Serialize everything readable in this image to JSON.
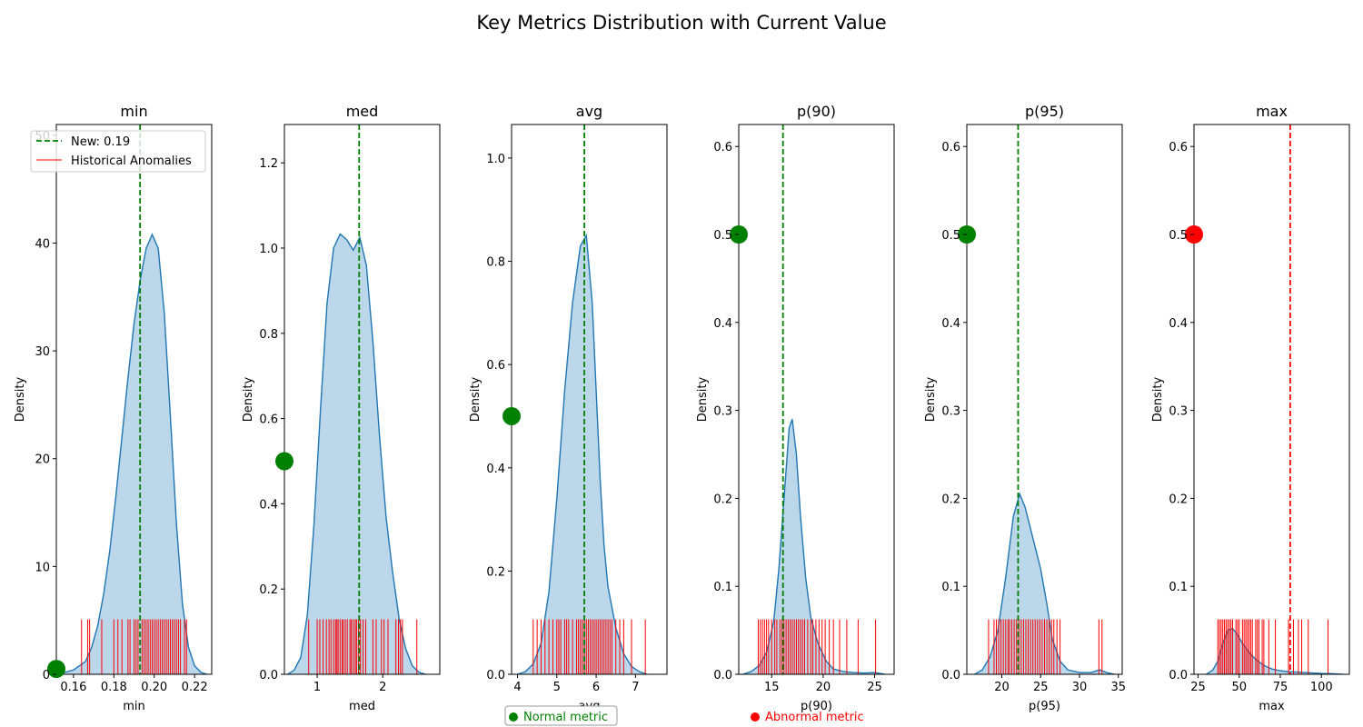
{
  "chart_data": {
    "type": "area",
    "title": "Key Metrics Distribution with Current Value",
    "legend": {
      "placement": "top-left",
      "new_label": "New: 0.19",
      "anomaly_label": "Historical Anomalies"
    },
    "status_legend": {
      "normal_label": "Normal metric",
      "abnormal_label": "Abnormal metric",
      "normal_color": "#008000",
      "abnormal_color": "#ff0000"
    },
    "colors": {
      "kde_line": "#1f77b4",
      "kde_fill": "#bcd6ea",
      "rug": "#ff0000",
      "normal": "#008000",
      "abnormal": "#ff0000"
    },
    "panels": [
      {
        "title": "min",
        "xlabel": "min",
        "ylabel": "Density",
        "xlim": [
          0.1515,
          0.2285
        ],
        "ylim": [
          0,
          51
        ],
        "xticks": [
          0.16,
          0.18,
          0.2,
          0.22
        ],
        "xtick_labels": [
          "0.16",
          "0.18",
          "0.20",
          "0.22"
        ],
        "yticks": [
          0,
          10,
          20,
          30,
          40,
          50
        ],
        "ytick_labels": [
          "0",
          "10",
          "20",
          "30",
          "40",
          "50"
        ],
        "new_value": 0.193,
        "status": "normal",
        "marker": [
          0.1515,
          0.5
        ],
        "kde": [
          [
            0.152,
            0
          ],
          [
            0.16,
            0.4
          ],
          [
            0.163,
            0.8
          ],
          [
            0.166,
            1.2
          ],
          [
            0.169,
            2.5
          ],
          [
            0.172,
            4.5
          ],
          [
            0.175,
            7.5
          ],
          [
            0.178,
            11.5
          ],
          [
            0.181,
            16.5
          ],
          [
            0.184,
            22
          ],
          [
            0.187,
            27.5
          ],
          [
            0.19,
            32.5
          ],
          [
            0.193,
            36.5
          ],
          [
            0.196,
            39.5
          ],
          [
            0.199,
            40.8
          ],
          [
            0.202,
            39.5
          ],
          [
            0.205,
            33.5
          ],
          [
            0.208,
            24
          ],
          [
            0.211,
            14
          ],
          [
            0.214,
            6.5
          ],
          [
            0.217,
            2.5
          ],
          [
            0.22,
            0.8
          ],
          [
            0.223,
            0.2
          ],
          [
            0.226,
            0
          ]
        ],
        "rug": [
          0.164,
          0.167,
          0.168,
          0.174,
          0.18,
          0.182,
          0.184,
          0.187,
          0.188,
          0.19,
          0.191,
          0.192,
          0.194,
          0.195,
          0.196,
          0.197,
          0.198,
          0.199,
          0.2,
          0.201,
          0.202,
          0.203,
          0.204,
          0.205,
          0.206,
          0.207,
          0.208,
          0.209,
          0.21,
          0.211,
          0.212,
          0.213,
          0.215,
          0.216
        ],
        "rug_height": 5.1
      },
      {
        "title": "med",
        "xlabel": "med",
        "ylabel": "Density",
        "xlim": [
          0.5,
          2.87
        ],
        "ylim": [
          0,
          1.29
        ],
        "xticks": [
          1,
          2
        ],
        "xtick_labels": [
          "1",
          "2"
        ],
        "yticks": [
          0,
          0.2,
          0.4,
          0.6,
          0.8,
          1.0,
          1.2
        ],
        "ytick_labels": [
          "0.0",
          "0.2",
          "0.4",
          "0.6",
          "0.8",
          "1.0",
          "1.2"
        ],
        "new_value": 1.64,
        "status": "normal",
        "marker": [
          0.5,
          0.5
        ],
        "kde": [
          [
            0.55,
            0
          ],
          [
            0.65,
            0.01
          ],
          [
            0.75,
            0.04
          ],
          [
            0.85,
            0.14
          ],
          [
            0.95,
            0.35
          ],
          [
            1.05,
            0.62
          ],
          [
            1.15,
            0.87
          ],
          [
            1.25,
            1.0
          ],
          [
            1.35,
            1.033
          ],
          [
            1.45,
            1.02
          ],
          [
            1.55,
            0.995
          ],
          [
            1.65,
            1.025
          ],
          [
            1.75,
            0.96
          ],
          [
            1.85,
            0.78
          ],
          [
            1.95,
            0.56
          ],
          [
            2.05,
            0.37
          ],
          [
            2.15,
            0.24
          ],
          [
            2.25,
            0.13
          ],
          [
            2.35,
            0.06
          ],
          [
            2.45,
            0.02
          ],
          [
            2.55,
            0.005
          ],
          [
            2.65,
            0
          ]
        ],
        "rug": [
          0.87,
          1.0,
          1.04,
          1.09,
          1.14,
          1.18,
          1.21,
          1.25,
          1.28,
          1.3,
          1.32,
          1.35,
          1.38,
          1.4,
          1.43,
          1.46,
          1.5,
          1.52,
          1.55,
          1.58,
          1.6,
          1.63,
          1.66,
          1.7,
          1.74,
          1.85,
          1.9,
          1.98,
          2.02,
          2.08,
          2.2,
          2.24,
          2.27,
          2.3,
          2.52
        ],
        "rug_height": 0.129
      },
      {
        "title": "avg",
        "xlabel": "avg",
        "ylabel": "Density",
        "xlim": [
          3.85,
          7.8
        ],
        "ylim": [
          0,
          1.065
        ],
        "xticks": [
          4,
          5,
          6,
          7
        ],
        "xtick_labels": [
          "4",
          "5",
          "6",
          "7"
        ],
        "yticks": [
          0,
          0.2,
          0.4,
          0.6,
          0.8,
          1.0
        ],
        "ytick_labels": [
          "0.0",
          "0.2",
          "0.4",
          "0.6",
          "0.8",
          "1.0"
        ],
        "new_value": 5.7,
        "status": "normal",
        "marker": [
          3.85,
          0.5
        ],
        "kde": [
          [
            4.0,
            0
          ],
          [
            4.2,
            0.005
          ],
          [
            4.4,
            0.02
          ],
          [
            4.6,
            0.06
          ],
          [
            4.8,
            0.16
          ],
          [
            5.0,
            0.34
          ],
          [
            5.2,
            0.55
          ],
          [
            5.4,
            0.72
          ],
          [
            5.6,
            0.83
          ],
          [
            5.75,
            0.85
          ],
          [
            5.9,
            0.72
          ],
          [
            6.0,
            0.55
          ],
          [
            6.1,
            0.38
          ],
          [
            6.2,
            0.25
          ],
          [
            6.3,
            0.17
          ],
          [
            6.5,
            0.09
          ],
          [
            6.7,
            0.04
          ],
          [
            6.9,
            0.015
          ],
          [
            7.1,
            0.005
          ],
          [
            7.3,
            0
          ]
        ],
        "rug": [
          4.4,
          4.5,
          4.6,
          4.7,
          4.8,
          4.9,
          5.0,
          5.05,
          5.1,
          5.2,
          5.25,
          5.3,
          5.4,
          5.5,
          5.55,
          5.6,
          5.65,
          5.7,
          5.75,
          5.8,
          5.85,
          5.9,
          5.95,
          6.0,
          6.05,
          6.1,
          6.15,
          6.2,
          6.25,
          6.3,
          6.35,
          6.4,
          6.5,
          6.6,
          6.7,
          6.9,
          7.25
        ],
        "rug_height": 0.1065
      },
      {
        "title": "p(90)",
        "xlabel": "p(90)",
        "ylabel": "Density",
        "xlim": [
          11.8,
          26.9
        ],
        "ylim": [
          0,
          0.625
        ],
        "xticks": [
          15,
          20,
          25
        ],
        "xtick_labels": [
          "15",
          "20",
          "25"
        ],
        "yticks": [
          0,
          0.1,
          0.2,
          0.3,
          0.4,
          0.5,
          0.6
        ],
        "ytick_labels": [
          "0.0",
          "0.1",
          "0.2",
          "0.3",
          "0.4",
          "0.5",
          "0.6"
        ],
        "new_value": 16.1,
        "status": "normal",
        "marker": [
          11.8,
          0.5
        ],
        "kde": [
          [
            12.2,
            0
          ],
          [
            13.0,
            0.003
          ],
          [
            13.8,
            0.01
          ],
          [
            14.5,
            0.025
          ],
          [
            15.2,
            0.06
          ],
          [
            15.7,
            0.12
          ],
          [
            16.2,
            0.2
          ],
          [
            16.7,
            0.28
          ],
          [
            17.0,
            0.29
          ],
          [
            17.4,
            0.25
          ],
          [
            17.8,
            0.18
          ],
          [
            18.3,
            0.11
          ],
          [
            18.8,
            0.065
          ],
          [
            19.5,
            0.035
          ],
          [
            20.3,
            0.015
          ],
          [
            21.0,
            0.006
          ],
          [
            22.0,
            0.003
          ],
          [
            23.0,
            0.002
          ],
          [
            24.0,
            0.0015
          ],
          [
            25.0,
            0.002
          ],
          [
            26.0,
            0
          ]
        ],
        "rug": [
          13.7,
          13.9,
          14.1,
          14.3,
          14.5,
          14.7,
          15.0,
          15.3,
          15.5,
          15.8,
          16.0,
          16.2,
          16.4,
          16.6,
          16.8,
          17.0,
          17.2,
          17.4,
          17.6,
          17.8,
          18.0,
          18.2,
          18.5,
          18.8,
          19.0,
          19.3,
          19.6,
          19.9,
          20.2,
          20.6,
          21.0,
          21.6,
          22.3,
          23.4,
          25.1
        ],
        "rug_height": 0.0625
      },
      {
        "title": "p(95)",
        "xlabel": "p(95)",
        "ylabel": "Density",
        "xlim": [
          15.5,
          35.5
        ],
        "ylim": [
          0,
          0.625
        ],
        "xticks": [
          20,
          25,
          30,
          35
        ],
        "xtick_labels": [
          "20",
          "25",
          "30",
          "35"
        ],
        "yticks": [
          0,
          0.1,
          0.2,
          0.3,
          0.4,
          0.5,
          0.6
        ],
        "ytick_labels": [
          "0.0",
          "0.1",
          "0.2",
          "0.3",
          "0.4",
          "0.5",
          "0.6"
        ],
        "new_value": 22.1,
        "status": "normal",
        "marker": [
          15.5,
          0.5
        ],
        "kde": [
          [
            16.5,
            0
          ],
          [
            17.5,
            0.005
          ],
          [
            18.5,
            0.02
          ],
          [
            19.5,
            0.05
          ],
          [
            20.5,
            0.11
          ],
          [
            21.5,
            0.18
          ],
          [
            22.3,
            0.205
          ],
          [
            23.0,
            0.19
          ],
          [
            24.0,
            0.155
          ],
          [
            25.0,
            0.12
          ],
          [
            25.8,
            0.08
          ],
          [
            26.5,
            0.04
          ],
          [
            27.5,
            0.015
          ],
          [
            28.5,
            0.005
          ],
          [
            30.0,
            0.002
          ],
          [
            31.5,
            0.002
          ],
          [
            32.6,
            0.005
          ],
          [
            33.5,
            0.002
          ],
          [
            34.5,
            0
          ]
        ],
        "rug": [
          18.3,
          19.0,
          19.3,
          19.6,
          19.9,
          20.2,
          20.5,
          20.8,
          21.0,
          21.3,
          21.6,
          21.9,
          22.2,
          22.5,
          22.8,
          23.1,
          23.4,
          23.7,
          24.0,
          24.3,
          24.6,
          24.9,
          25.2,
          25.5,
          25.8,
          26.1,
          26.4,
          26.7,
          27.1,
          27.5,
          32.5,
          32.9
        ],
        "rug_height": 0.0625
      },
      {
        "title": "max",
        "xlabel": "max",
        "ylabel": "Density",
        "xlim": [
          22.5,
          117
        ],
        "ylim": [
          0,
          0.625
        ],
        "xticks": [
          25,
          50,
          75,
          100
        ],
        "xtick_labels": [
          "25",
          "50",
          "75",
          "100"
        ],
        "yticks": [
          0,
          0.1,
          0.2,
          0.3,
          0.4,
          0.5,
          0.6
        ],
        "ytick_labels": [
          "0.0",
          "0.1",
          "0.2",
          "0.3",
          "0.4",
          "0.5",
          "0.6"
        ],
        "new_value": 81,
        "status": "abnormal",
        "marker": [
          22.5,
          0.5
        ],
        "kde": [
          [
            30,
            0
          ],
          [
            34,
            0.005
          ],
          [
            37,
            0.015
          ],
          [
            40,
            0.035
          ],
          [
            43,
            0.05
          ],
          [
            46,
            0.052
          ],
          [
            49,
            0.045
          ],
          [
            52,
            0.035
          ],
          [
            56,
            0.025
          ],
          [
            60,
            0.017
          ],
          [
            65,
            0.01
          ],
          [
            70,
            0.006
          ],
          [
            75,
            0.004
          ],
          [
            80,
            0.003
          ],
          [
            85,
            0.0025
          ],
          [
            90,
            0.002
          ],
          [
            95,
            0.0015
          ],
          [
            100,
            0.001
          ],
          [
            105,
            0.0008
          ],
          [
            110,
            0.0003
          ],
          [
            113,
            0
          ]
        ],
        "rug": [
          37,
          38,
          39,
          40,
          41,
          42,
          43,
          44,
          45,
          46,
          48,
          49,
          50,
          52,
          53,
          54,
          55,
          56,
          57,
          58,
          60,
          61,
          62,
          64,
          65,
          68,
          72,
          80,
          83,
          86,
          88,
          92,
          104
        ],
        "rug_height": 0.0625
      }
    ]
  }
}
